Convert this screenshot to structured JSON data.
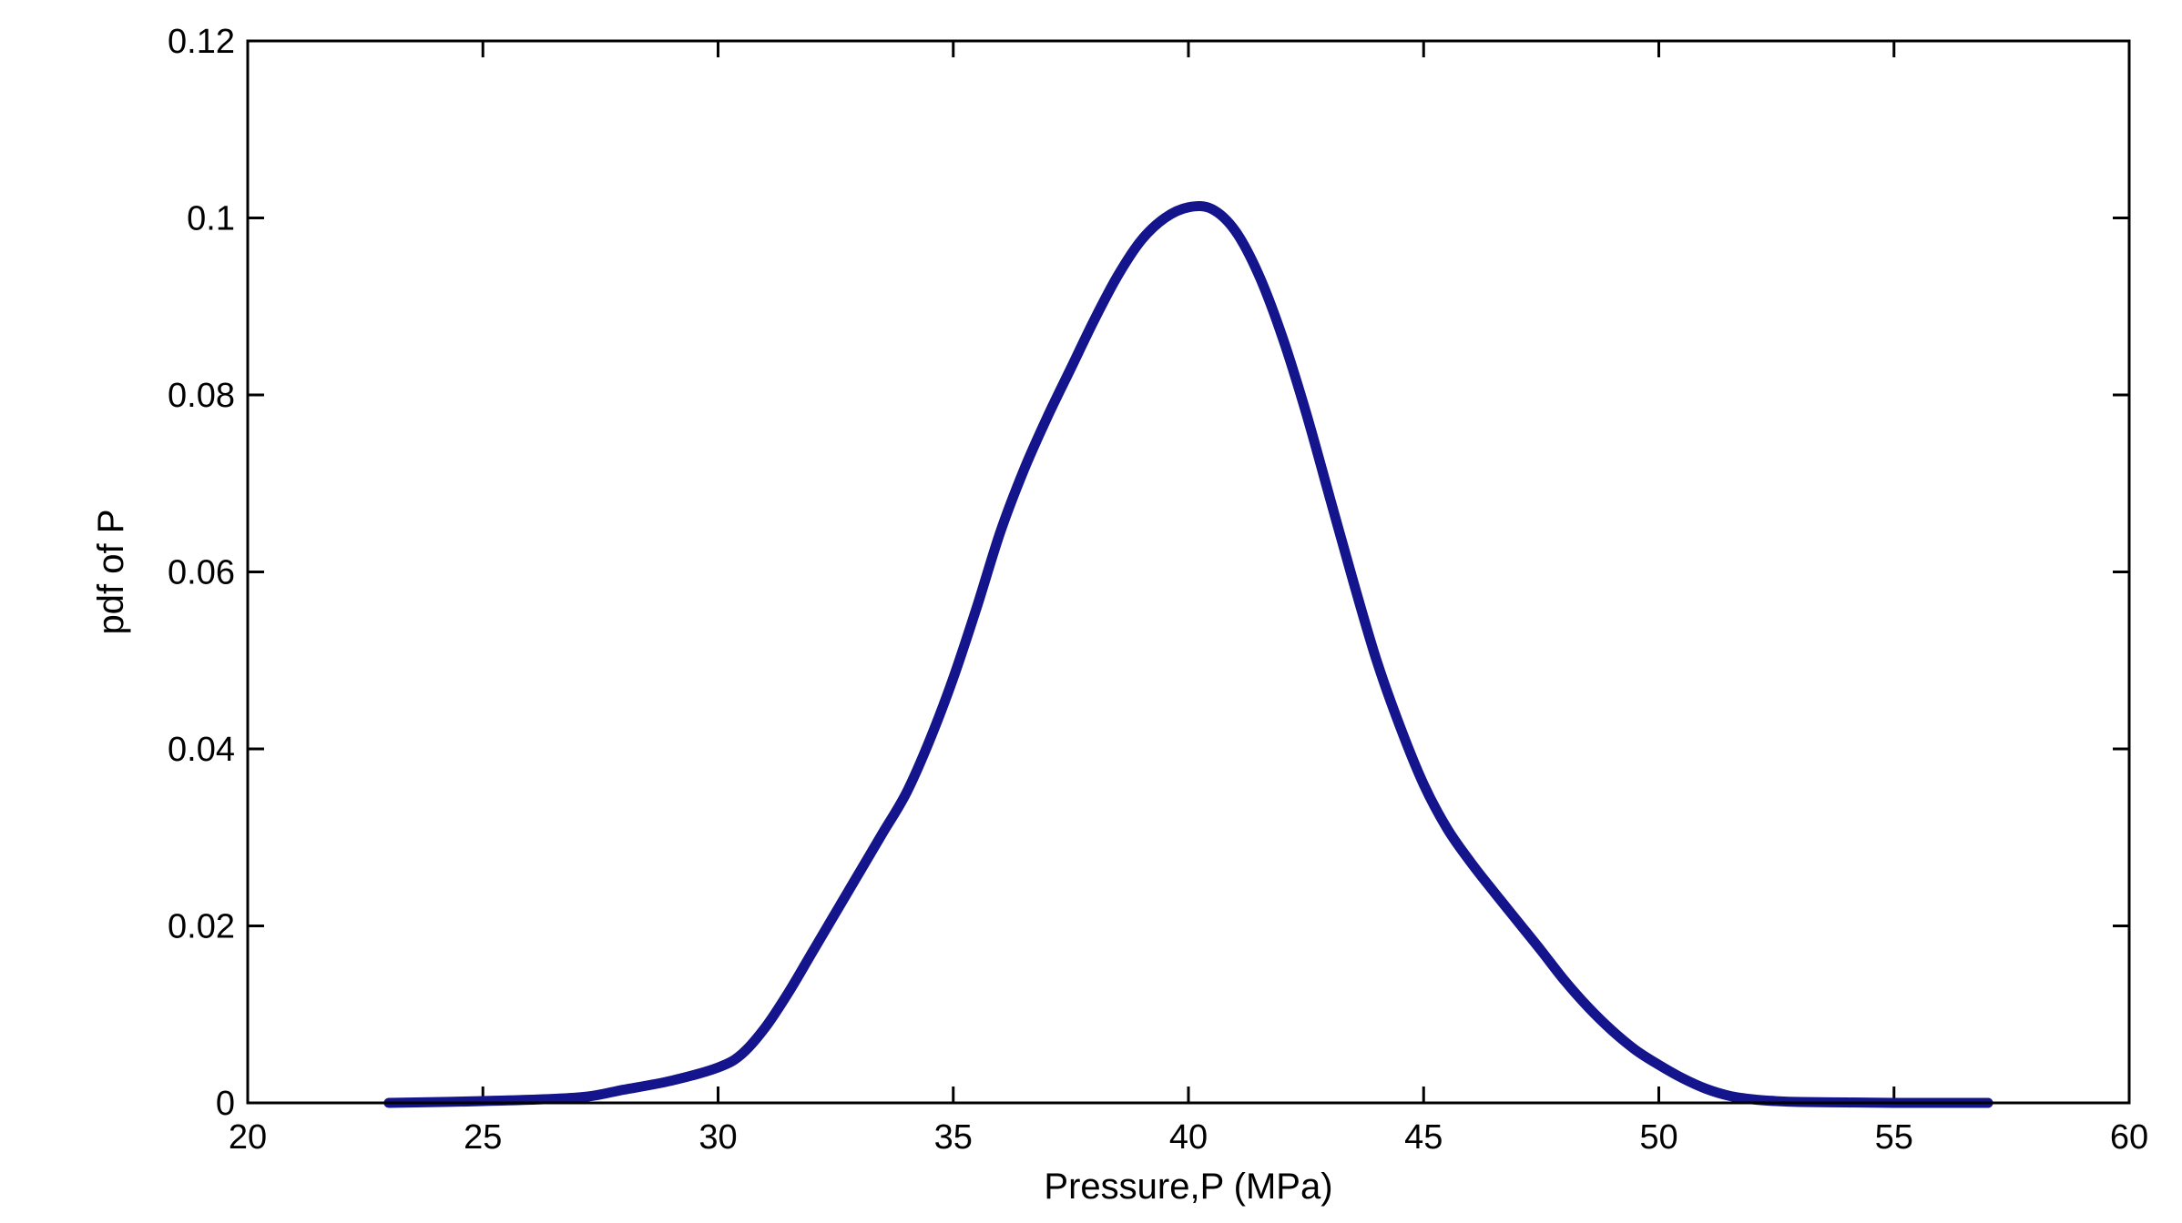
{
  "chart_data": {
    "type": "line",
    "title": "",
    "xlabel": "Pressure,P (MPa)",
    "ylabel": "pdf of P",
    "xlim": [
      20,
      60
    ],
    "ylim": [
      0,
      0.12
    ],
    "xticks": [
      20,
      25,
      30,
      35,
      40,
      45,
      50,
      55,
      60
    ],
    "yticks": [
      0,
      0.02,
      0.04,
      0.06,
      0.08,
      0.1,
      0.12
    ],
    "xtick_labels": [
      "20",
      "25",
      "30",
      "35",
      "40",
      "45",
      "50",
      "55",
      "60"
    ],
    "ytick_labels": [
      "0",
      "0.02",
      "0.04",
      "0.06",
      "0.08",
      "0.1",
      "0.12"
    ],
    "grid": false,
    "legend": "none",
    "series": [
      {
        "color": "#14148c",
        "x": [
          23,
          25,
          27,
          28,
          29,
          30,
          30.5,
          31,
          31.5,
          32,
          32.5,
          33,
          33.5,
          34,
          34.5,
          35,
          35.5,
          36,
          36.5,
          37,
          37.5,
          38,
          38.5,
          39,
          39.5,
          40,
          40.5,
          41,
          41.5,
          42,
          42.5,
          43,
          43.5,
          44,
          44.5,
          45,
          45.5,
          46,
          46.5,
          47,
          47.5,
          48,
          48.5,
          49,
          49.5,
          50,
          50.5,
          51,
          51.5,
          52,
          52.5,
          53,
          54,
          55,
          56,
          57
        ],
        "y": [
          0,
          0.0002,
          0.0006,
          0.0015,
          0.0025,
          0.004,
          0.0055,
          0.0085,
          0.0125,
          0.017,
          0.0215,
          0.026,
          0.0305,
          0.035,
          0.041,
          0.048,
          0.056,
          0.0645,
          0.0715,
          0.0775,
          0.083,
          0.0885,
          0.0935,
          0.0975,
          0.1,
          0.1012,
          0.101,
          0.0985,
          0.0935,
          0.0865,
          0.078,
          0.0685,
          0.059,
          0.05,
          0.0425,
          0.036,
          0.031,
          0.0272,
          0.0238,
          0.0205,
          0.0172,
          0.0138,
          0.0108,
          0.0082,
          0.006,
          0.0043,
          0.0028,
          0.0016,
          0.0008,
          0.0004,
          0.0002,
          0.0001,
          5e-05,
          0,
          0,
          0
        ]
      }
    ]
  }
}
